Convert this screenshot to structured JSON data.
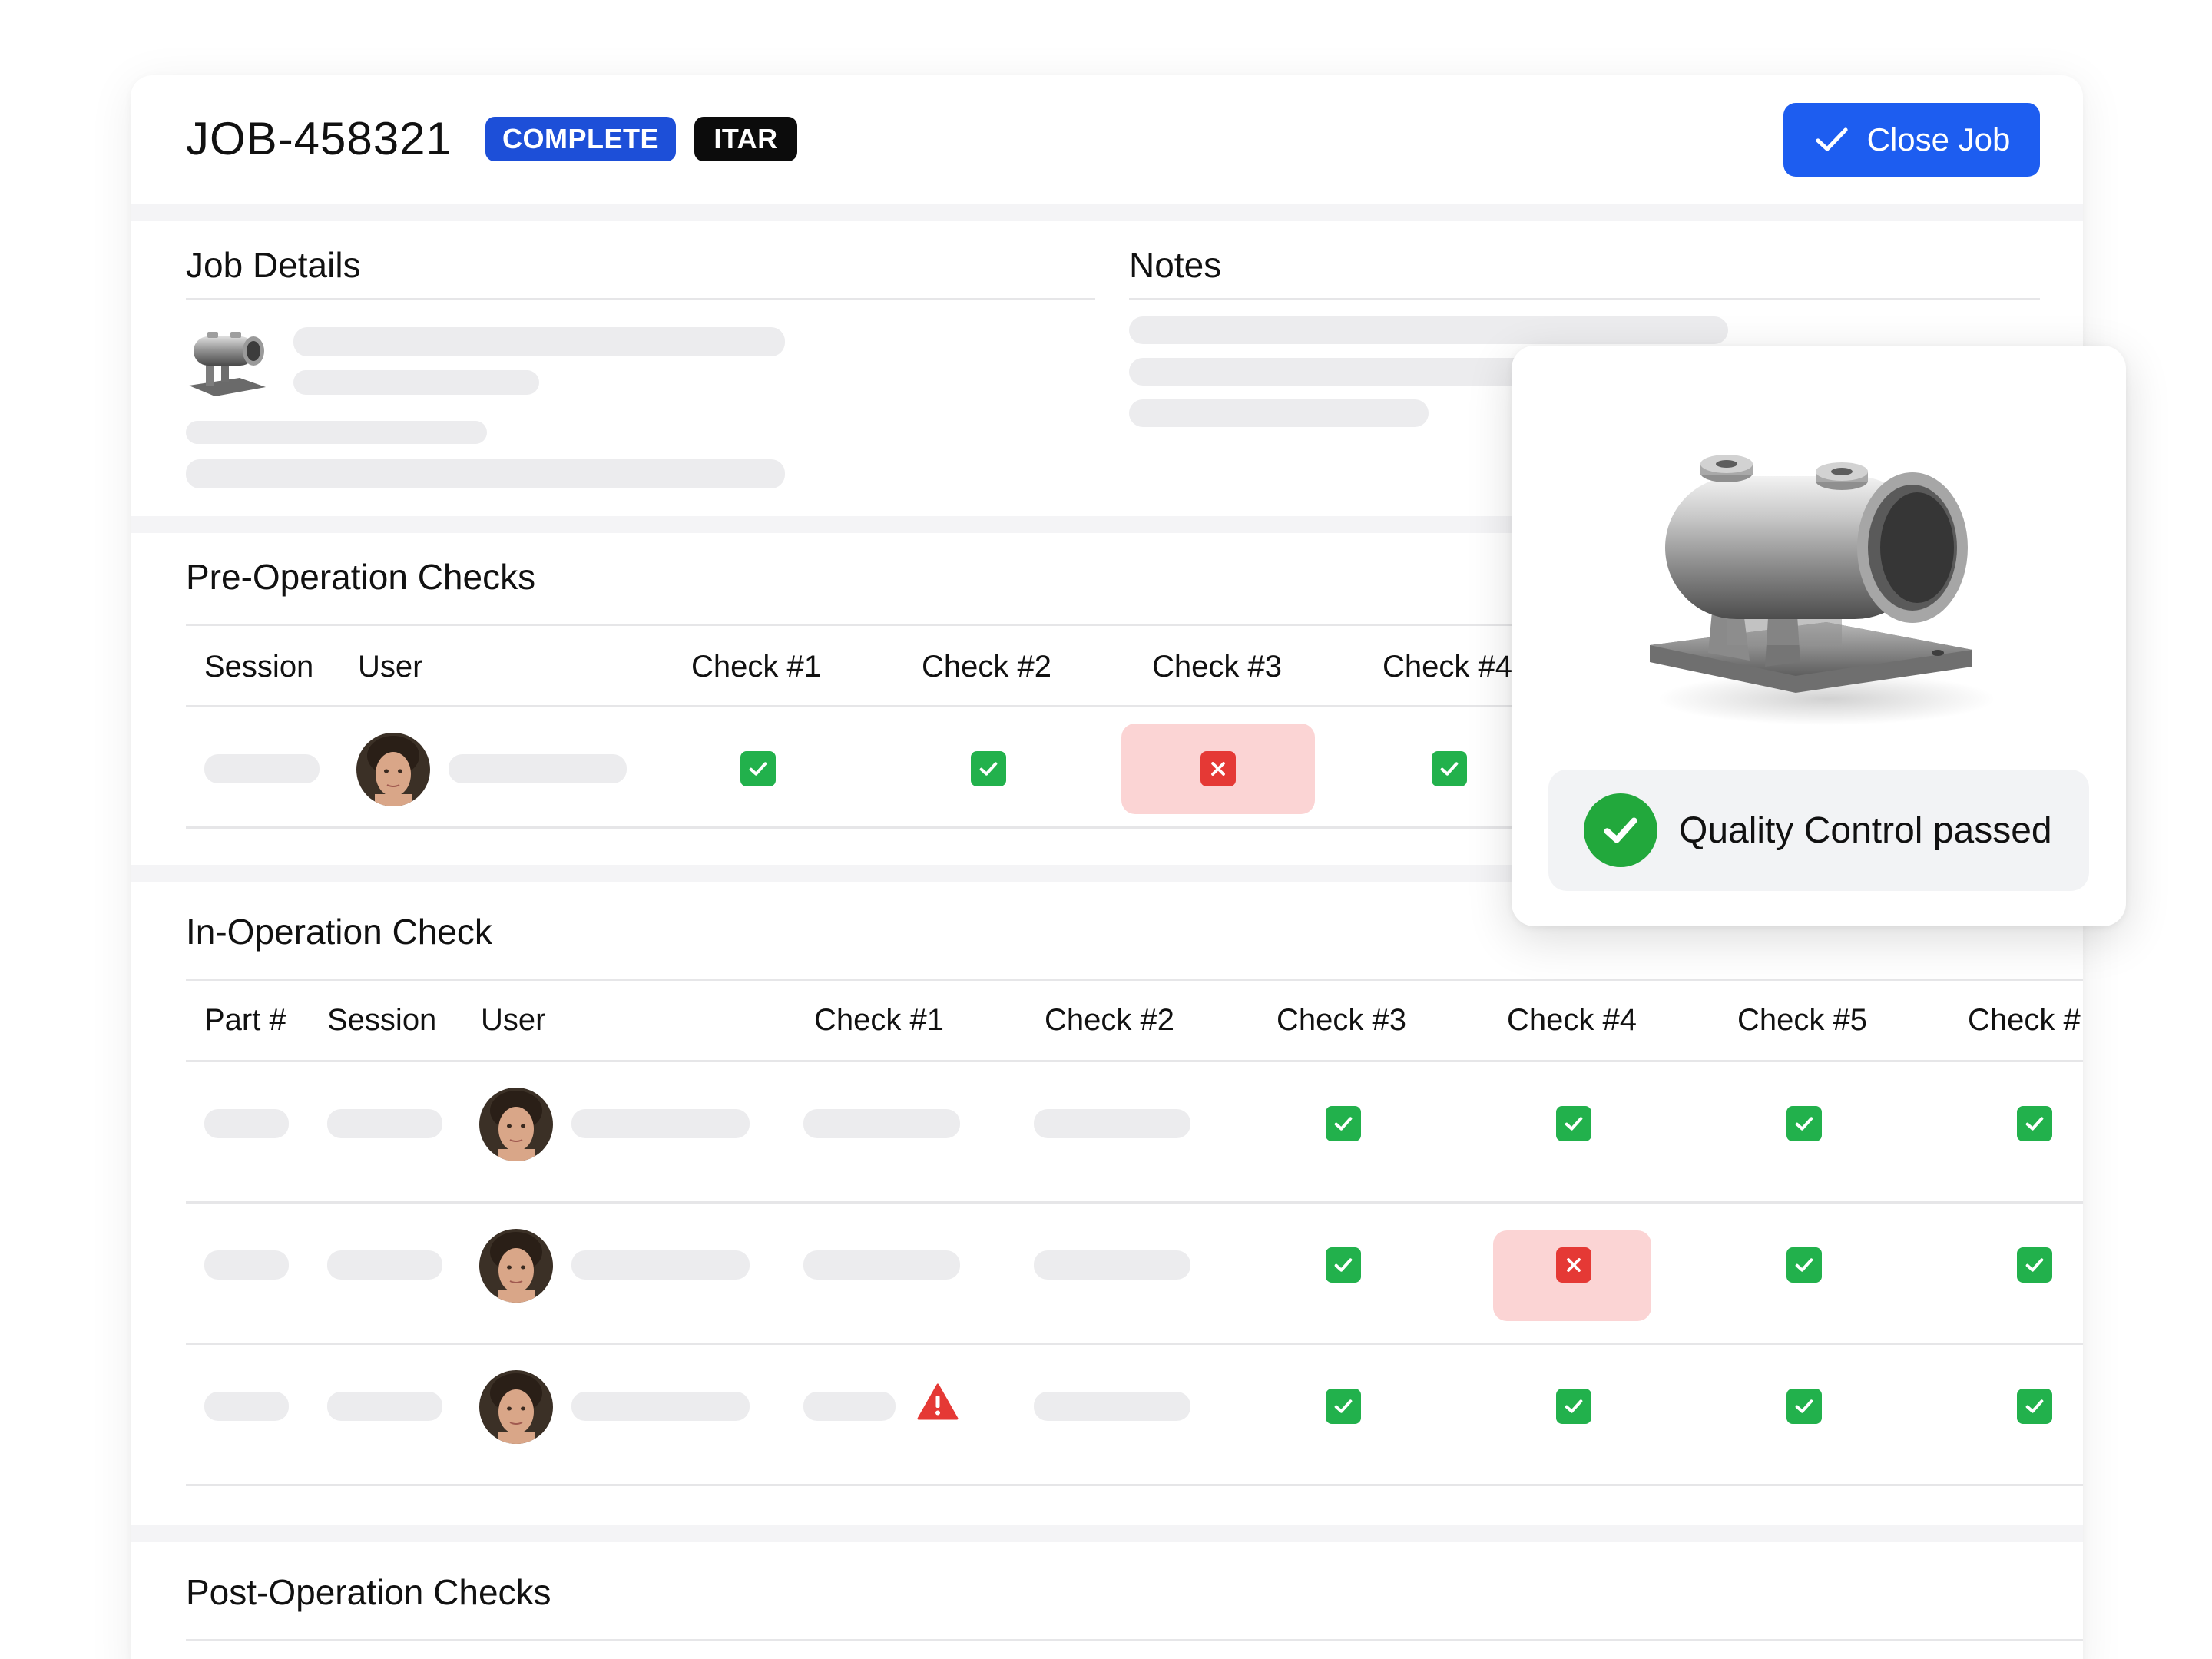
{
  "header": {
    "job_id": "JOB-458321",
    "status_badge": "COMPLETE",
    "itar_badge": "ITAR",
    "close_button_label": "Close Job"
  },
  "job_details": {
    "title": "Job Details"
  },
  "notes": {
    "title": "Notes"
  },
  "pre_operation": {
    "title": "Pre-Operation Checks",
    "columns": [
      "Session",
      "User",
      "Check #1",
      "Check #2",
      "Check #3",
      "Check #4"
    ],
    "rows": [
      {
        "checks": [
          "pass",
          "pass",
          "fail",
          "pass"
        ]
      }
    ]
  },
  "in_operation": {
    "title": "In-Operation Check",
    "columns": [
      "Part #",
      "Session",
      "User",
      "Check #1",
      "Check #2",
      "Check #3",
      "Check #4",
      "Check #5",
      "Check #"
    ],
    "rows": [
      {
        "checks": [
          "pass",
          "pass",
          "pass",
          "pass"
        ]
      },
      {
        "checks": [
          "pass",
          "fail",
          "pass",
          "pass"
        ]
      },
      {
        "check1_warning": true,
        "checks": [
          "pass",
          "pass",
          "pass",
          "pass"
        ]
      }
    ]
  },
  "post_operation": {
    "title": "Post-Operation Checks"
  },
  "quality_popup": {
    "message": "Quality Control passed"
  },
  "colors": {
    "primary": "#1d5df0",
    "pass": "#22b14c",
    "fail": "#e53935",
    "fail_bg": "#fbd4d4",
    "skeleton": "#ececee"
  },
  "icons": {
    "check": "check-icon",
    "fail": "x-icon",
    "warning": "warning-triangle-icon",
    "part": "pipe-bracket-part-image"
  }
}
